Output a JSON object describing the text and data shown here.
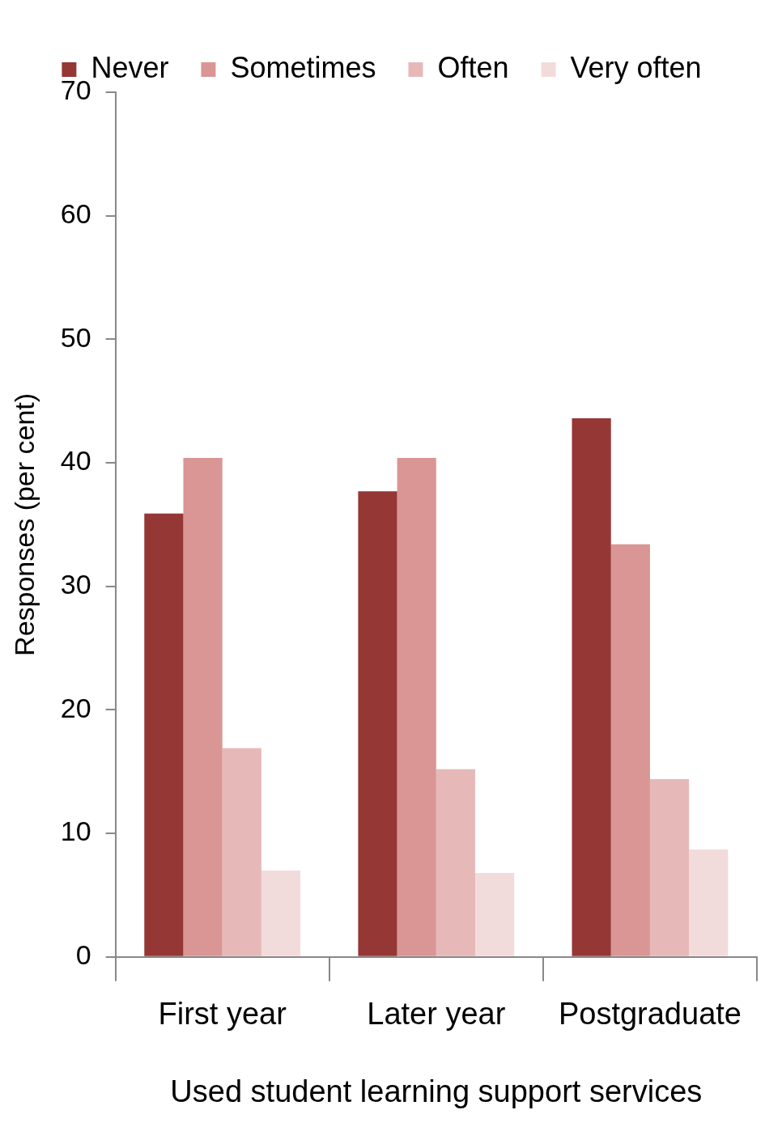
{
  "chart_data": {
    "type": "bar",
    "xlabel": "Used student learning support services",
    "ylabel": "Responses (per cent)",
    "categories": [
      "First year",
      "Later year",
      "Postgraduate"
    ],
    "series": [
      {
        "name": "Never",
        "color": "#953735",
        "values": [
          35.9,
          37.7,
          43.6
        ]
      },
      {
        "name": "Sometimes",
        "color": "#d99694",
        "values": [
          40.4,
          40.4,
          33.4
        ]
      },
      {
        "name": "Often",
        "color": "#e6b9b8",
        "values": [
          16.9,
          15.2,
          14.4
        ]
      },
      {
        "name": "Very often",
        "color": "#f2dcdb",
        "values": [
          7.0,
          6.8,
          8.7
        ]
      }
    ],
    "ylim": [
      0,
      70
    ],
    "yticks": [
      0,
      10,
      20,
      30,
      40,
      50,
      60,
      70
    ],
    "legend": "top"
  }
}
